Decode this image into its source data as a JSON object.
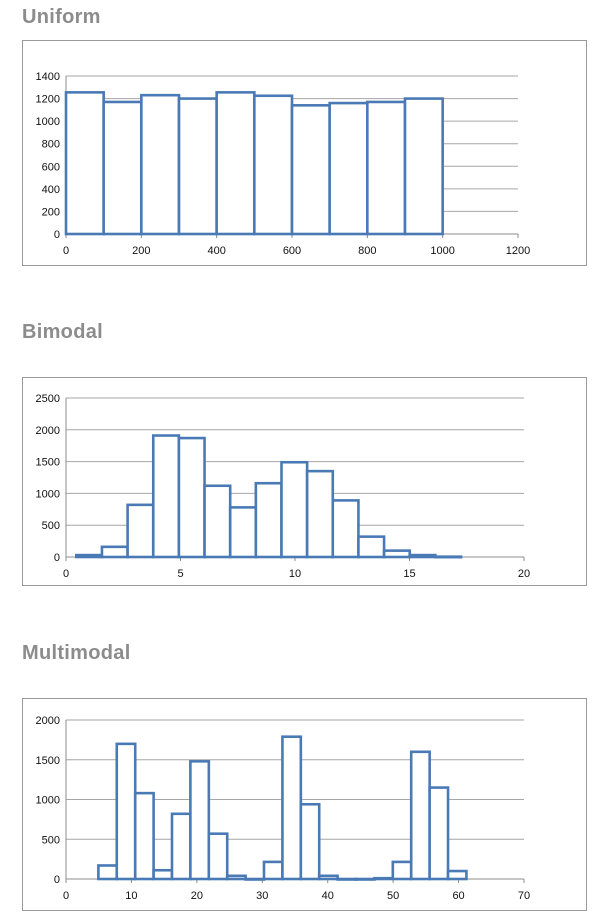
{
  "chart_data": [
    {
      "type": "bar",
      "title": "Uniform",
      "bin_edges": [
        0,
        100,
        200,
        300,
        400,
        500,
        600,
        700,
        800,
        900,
        1000
      ],
      "counts": [
        1255,
        1170,
        1230,
        1200,
        1255,
        1225,
        1140,
        1160,
        1170,
        1200
      ],
      "xlim": [
        0,
        1200
      ],
      "ylim": [
        0,
        1400
      ],
      "xticks": [
        "0",
        "200",
        "400",
        "600",
        "800",
        "1000",
        "1200"
      ],
      "yticks": [
        "0",
        "200",
        "400",
        "600",
        "800",
        "1000",
        "1200",
        "1400"
      ],
      "grid": true,
      "color": "#4a7ab5"
    },
    {
      "type": "bar",
      "title": "Bimodal",
      "bin_edges": [
        0.45,
        1.57,
        2.69,
        3.81,
        4.93,
        6.05,
        7.17,
        8.29,
        9.41,
        10.53,
        11.65,
        12.77,
        13.89,
        15.01,
        16.13,
        17.25
      ],
      "counts": [
        30,
        160,
        820,
        1910,
        1870,
        1120,
        780,
        1160,
        1490,
        1350,
        890,
        320,
        100,
        30,
        5
      ],
      "xlim": [
        0,
        20
      ],
      "ylim": [
        0,
        2500
      ],
      "xticks": [
        "0",
        "5",
        "10",
        "15",
        "20"
      ],
      "yticks": [
        "0",
        "500",
        "1000",
        "1500",
        "2000",
        "2500"
      ],
      "grid": true,
      "color": "#4a7ab5"
    },
    {
      "type": "bar",
      "title": "Multimodal",
      "bin_edges": [
        4.95,
        7.76,
        10.58,
        13.39,
        16.2,
        19.01,
        21.83,
        24.64,
        27.45,
        30.26,
        33.08,
        35.89,
        38.7,
        41.51,
        44.33,
        47.14,
        49.95,
        52.76,
        55.58,
        58.39,
        61.2
      ],
      "counts": [
        170,
        1700,
        1080,
        110,
        820,
        1480,
        570,
        40,
        0,
        215,
        1790,
        940,
        40,
        0,
        0,
        10,
        215,
        1600,
        1150,
        100
      ],
      "xlim": [
        0,
        70
      ],
      "ylim": [
        0,
        2000
      ],
      "xticks": [
        "0",
        "10",
        "20",
        "30",
        "40",
        "50",
        "60",
        "70"
      ],
      "yticks": [
        "0",
        "500",
        "1000",
        "1500",
        "2000"
      ],
      "grid": true,
      "color": "#4a7ab5"
    }
  ]
}
